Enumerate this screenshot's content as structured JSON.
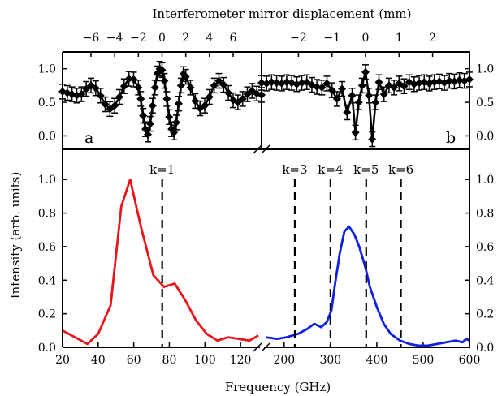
{
  "chart_data": [
    {
      "id": "a",
      "type": "line",
      "panel_letter": "a",
      "top_xlabel": "Interferometer mirror displacement (mm)",
      "x_tick_labels": [
        "−6",
        "−4",
        "−2",
        "0",
        "2",
        "4",
        "6"
      ],
      "x_ticks": [
        -6,
        -4,
        -2,
        0,
        2,
        4,
        6
      ],
      "xlim": [
        -8.4,
        8.4
      ],
      "ylim": [
        -0.2,
        1.25
      ],
      "y_tick_labels": [
        "0.0",
        "0.5",
        "1.0"
      ],
      "y_ticks": [
        0.0,
        0.5,
        1.0
      ],
      "series": [
        {
          "x": [
            -8.4,
            -8.0,
            -7.6,
            -7.2,
            -6.8,
            -6.4,
            -6.0,
            -5.6,
            -5.2,
            -4.8,
            -4.4,
            -4.0,
            -3.6,
            -3.2,
            -2.8,
            -2.4,
            -2.0,
            -1.8,
            -1.6,
            -1.4,
            -1.2,
            -1.0,
            -0.8,
            -0.6,
            -0.4,
            -0.2,
            0.0,
            0.2,
            0.4,
            0.6,
            0.8,
            1.0,
            1.2,
            1.4,
            1.6,
            1.8,
            2.0,
            2.4,
            2.8,
            3.2,
            3.6,
            4.0,
            4.4,
            4.8,
            5.2,
            5.6,
            6.0,
            6.4,
            6.8,
            7.2,
            7.6,
            8.0,
            8.4
          ],
          "y": [
            0.66,
            0.64,
            0.62,
            0.6,
            0.62,
            0.7,
            0.75,
            0.71,
            0.6,
            0.47,
            0.4,
            0.45,
            0.58,
            0.74,
            0.85,
            0.84,
            0.72,
            0.55,
            0.3,
            0.1,
            0.02,
            0.18,
            0.45,
            0.72,
            0.93,
            1.0,
            0.98,
            0.82,
            0.55,
            0.28,
            0.1,
            0.05,
            0.2,
            0.48,
            0.75,
            0.92,
            0.88,
            0.72,
            0.52,
            0.41,
            0.45,
            0.58,
            0.75,
            0.82,
            0.76,
            0.64,
            0.53,
            0.5,
            0.55,
            0.62,
            0.67,
            0.63,
            0.61
          ],
          "color": "#000000",
          "marker": "diamond",
          "error_bars": true
        }
      ]
    },
    {
      "id": "b",
      "type": "line",
      "panel_letter": "b",
      "x_tick_labels": [
        "−2",
        "−1",
        "0",
        "1",
        "2"
      ],
      "x_ticks": [
        -2,
        -1,
        0,
        1,
        2
      ],
      "xlim": [
        -3.1,
        3.1
      ],
      "ylim": [
        -0.2,
        1.25
      ],
      "y_tick_labels": [
        "0.0",
        "0.5",
        "1.0"
      ],
      "y_ticks": [
        0.0,
        0.5,
        1.0
      ],
      "series": [
        {
          "x": [
            -3.1,
            -2.95,
            -2.8,
            -2.65,
            -2.5,
            -2.35,
            -2.2,
            -2.05,
            -1.9,
            -1.75,
            -1.6,
            -1.45,
            -1.3,
            -1.15,
            -1.0,
            -0.85,
            -0.7,
            -0.55,
            -0.4,
            -0.3,
            -0.2,
            -0.1,
            0.0,
            0.1,
            0.2,
            0.3,
            0.4,
            0.55,
            0.7,
            0.85,
            1.0,
            1.15,
            1.3,
            1.45,
            1.6,
            1.75,
            1.9,
            2.05,
            2.2,
            2.35,
            2.5,
            2.65,
            2.8,
            2.95,
            3.1
          ],
          "y": [
            0.79,
            0.78,
            0.8,
            0.79,
            0.78,
            0.8,
            0.79,
            0.77,
            0.79,
            0.8,
            0.76,
            0.73,
            0.72,
            0.78,
            0.68,
            0.55,
            0.7,
            0.35,
            0.6,
            0.05,
            0.5,
            0.75,
            0.95,
            0.6,
            -0.05,
            0.5,
            0.8,
            0.62,
            0.75,
            0.72,
            0.78,
            0.74,
            0.8,
            0.77,
            0.79,
            0.8,
            0.78,
            0.8,
            0.81,
            0.79,
            0.82,
            0.81,
            0.83,
            0.82,
            0.84
          ],
          "color": "#000000",
          "marker": "diamond",
          "error_bars": true
        }
      ]
    },
    {
      "id": "c",
      "type": "line",
      "xlabel": "Frequency (GHz)",
      "ylabel": "Intensity (arb. units)",
      "broken_x_axis": true,
      "ylim": [
        0,
        1.18
      ],
      "y_tick_labels": [
        "0.0",
        "0.2",
        "0.4",
        "0.6",
        "0.8",
        "1.0"
      ],
      "y_ticks": [
        0.0,
        0.2,
        0.4,
        0.6,
        0.8,
        1.0
      ],
      "segments": [
        {
          "xlim": [
            20,
            130
          ],
          "x_ticks": [
            20,
            40,
            60,
            80,
            100,
            120
          ],
          "x_tick_labels": [
            "20",
            "40",
            "60",
            "80",
            "100",
            "120"
          ],
          "series": [
            {
              "color": "#e8151a",
              "x": [
                20,
                34,
                40,
                47,
                53,
                58,
                64,
                71,
                77,
                83,
                89,
                95,
                101,
                107,
                113,
                119,
                125,
                130
              ],
              "y": [
                0.1,
                0.02,
                0.08,
                0.25,
                0.84,
                1.0,
                0.72,
                0.43,
                0.36,
                0.38,
                0.28,
                0.16,
                0.08,
                0.04,
                0.06,
                0.05,
                0.04,
                0.07
              ]
            }
          ]
        },
        {
          "xlim": [
            160,
            600
          ],
          "x_ticks": [
            200,
            300,
            400,
            500,
            600
          ],
          "x_tick_labels": [
            "200",
            "300",
            "400",
            "500",
            "600"
          ],
          "series": [
            {
              "color": "#1020e0",
              "x": [
                160,
                185,
                205,
                230,
                250,
                265,
                280,
                292,
                302,
                310,
                320,
                330,
                340,
                352,
                362,
                375,
                385,
                400,
                415,
                430,
                450,
                470,
                490,
                510,
                530,
                550,
                570,
                585,
                593,
                600
              ],
              "y": [
                0.06,
                0.05,
                0.06,
                0.08,
                0.11,
                0.14,
                0.12,
                0.15,
                0.22,
                0.38,
                0.56,
                0.69,
                0.72,
                0.67,
                0.6,
                0.48,
                0.36,
                0.24,
                0.14,
                0.08,
                0.04,
                0.02,
                0.01,
                0.01,
                0.02,
                0.03,
                0.04,
                0.03,
                0.05,
                0.04
              ]
            }
          ]
        }
      ],
      "vlines": [
        {
          "label": "k=1",
          "x": 76
        },
        {
          "label": "k=3",
          "x": 223
        },
        {
          "label": "k=4",
          "x": 300
        },
        {
          "label": "k=5",
          "x": 377
        },
        {
          "label": "k=6",
          "x": 452
        }
      ]
    }
  ]
}
